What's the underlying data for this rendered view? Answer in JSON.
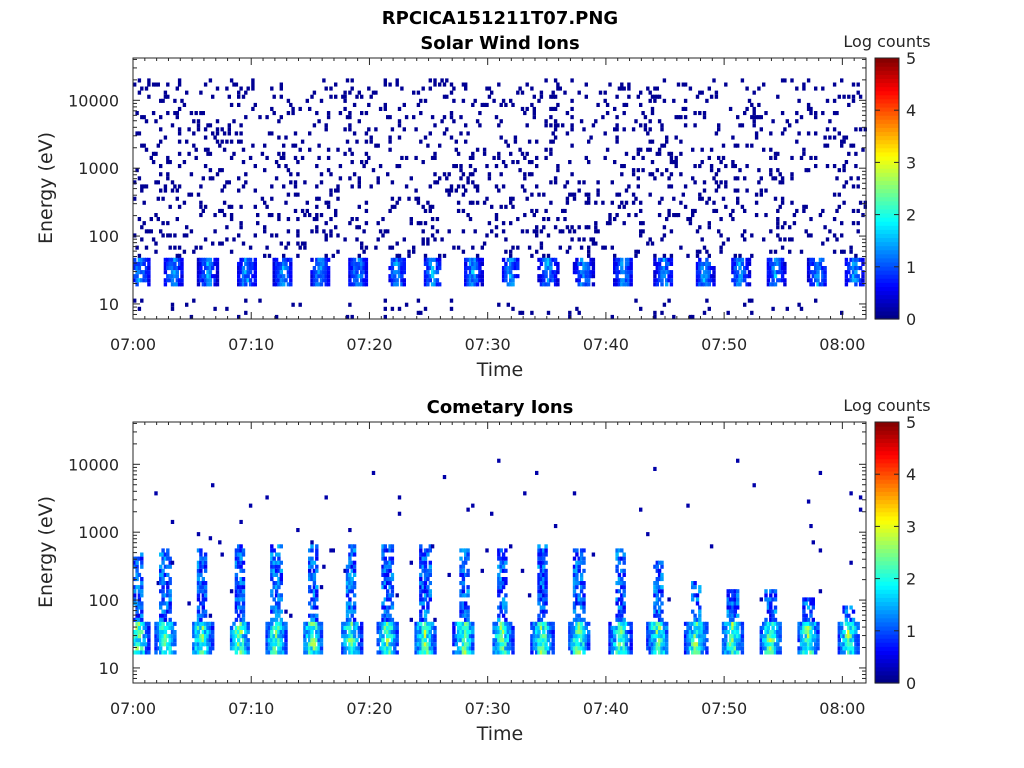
{
  "figure_title": "RPCICA151211T07.PNG",
  "chart_data": [
    {
      "type": "heatmap",
      "title": "Solar Wind Ions",
      "xlabel": "Time",
      "ylabel": "Energy (eV)",
      "yscale": "log",
      "x_range": [
        "07:00",
        "08:02"
      ],
      "ylim": [
        6,
        42000
      ],
      "x_ticks": [
        "07:00",
        "07:10",
        "07:20",
        "07:30",
        "07:40",
        "07:50",
        "08:00"
      ],
      "y_ticks": [
        "10",
        "100",
        "1000",
        "10000"
      ],
      "colorbar": {
        "label": "Log counts",
        "range": [
          0,
          5
        ],
        "ticks": [
          "0",
          "1",
          "2",
          "3",
          "4",
          "5"
        ],
        "colormap": "jet"
      },
      "pattern": {
        "bursts_minutes": [
          0.5,
          3.3,
          6.2,
          9.5,
          12.6,
          15.7,
          18.9,
          22.2,
          25.2,
          28.6,
          31.8,
          35.0,
          38.0,
          41.4,
          44.8,
          48.2,
          51.2,
          54.2,
          57.8,
          60.9
        ],
        "burst_energy_band_eV": [
          18,
          45
        ],
        "burst_peak_log_counts": 1.6,
        "background_energy_band_eV": [
          50,
          22000
        ],
        "background_log_counts": 0.1,
        "low_energy_streaks_eV": [
          6,
          12
        ]
      }
    },
    {
      "type": "heatmap",
      "title": "Cometary Ions",
      "xlabel": "Time",
      "ylabel": "Energy (eV)",
      "yscale": "log",
      "x_range": [
        "07:00",
        "08:02"
      ],
      "ylim": [
        6,
        42000
      ],
      "x_ticks": [
        "07:00",
        "07:10",
        "07:20",
        "07:30",
        "07:40",
        "07:50",
        "08:00"
      ],
      "y_ticks": [
        "10",
        "100",
        "1000",
        "10000"
      ],
      "colorbar": {
        "label": "Log counts",
        "range": [
          0,
          5
        ],
        "ticks": [
          "0",
          "1",
          "2",
          "3",
          "4",
          "5"
        ],
        "colormap": "jet"
      },
      "pattern": {
        "bursts_minutes": [
          0.3,
          2.6,
          5.7,
          8.9,
          12.0,
          15.1,
          18.3,
          21.4,
          24.6,
          27.9,
          31.1,
          34.5,
          37.6,
          41.1,
          44.3,
          47.5,
          50.6,
          53.8,
          57.0,
          60.4
        ],
        "burst_base_band_eV": [
          15,
          45
        ],
        "burst_peak_log_counts": 2.9,
        "burst_tail_top_eV": [
          500,
          600,
          600,
          700,
          650,
          700,
          700,
          650,
          700,
          600,
          550,
          650,
          600,
          550,
          400,
          200,
          150,
          150,
          110,
          80
        ],
        "tail_log_counts": 1.3,
        "sparse_high_energy_log_counts": 0.2
      }
    }
  ]
}
